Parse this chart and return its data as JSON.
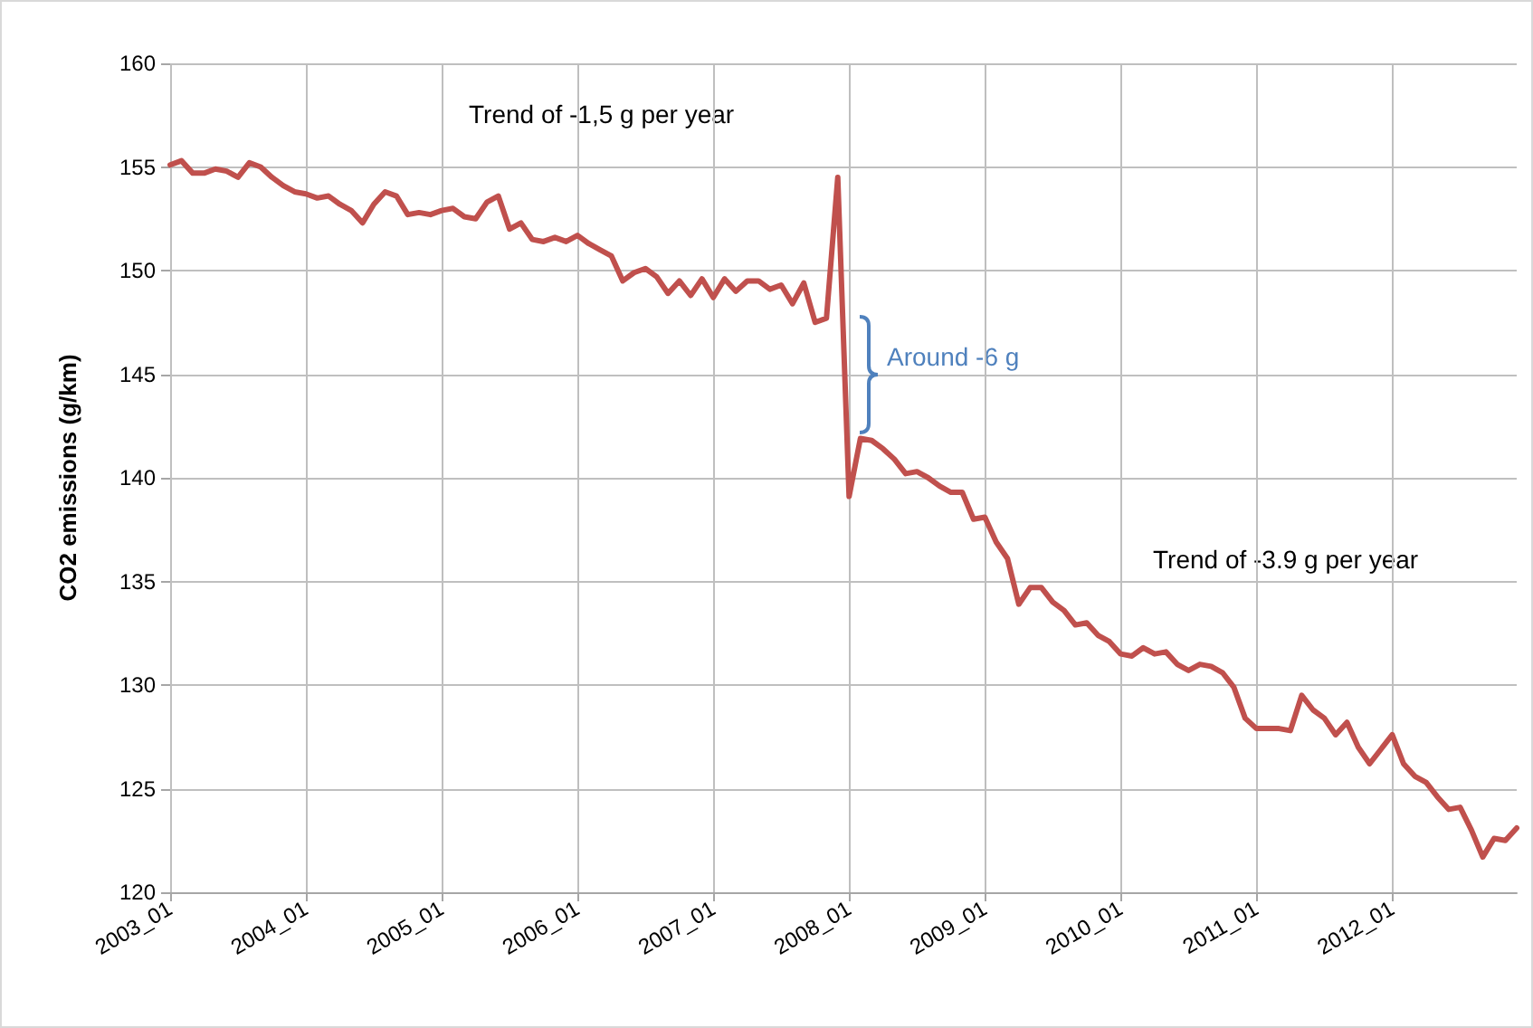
{
  "chart_data": {
    "type": "line",
    "ylabel": "CO2 emissions (g/km)",
    "categories": [
      "2003_01",
      null,
      null,
      null,
      null,
      null,
      null,
      null,
      null,
      null,
      null,
      null,
      "2004_01",
      null,
      null,
      null,
      null,
      null,
      null,
      null,
      null,
      null,
      null,
      null,
      "2005_01",
      null,
      null,
      null,
      null,
      null,
      null,
      null,
      null,
      null,
      null,
      null,
      "2006_01",
      null,
      null,
      null,
      null,
      null,
      null,
      null,
      null,
      null,
      null,
      null,
      "2007_01",
      null,
      null,
      null,
      null,
      null,
      null,
      null,
      null,
      null,
      null,
      null,
      "2008_01",
      null,
      null,
      null,
      null,
      null,
      null,
      null,
      null,
      null,
      null,
      null,
      "2009_01",
      null,
      null,
      null,
      null,
      null,
      null,
      null,
      null,
      null,
      null,
      null,
      "2010_01",
      null,
      null,
      null,
      null,
      null,
      null,
      null,
      null,
      null,
      null,
      null,
      "2011_01",
      null,
      null,
      null,
      null,
      null,
      null,
      null,
      null,
      null,
      null,
      null,
      "2012_01",
      null,
      null,
      null,
      null,
      null,
      null,
      null,
      null,
      null,
      null,
      null
    ],
    "series": [
      {
        "color": "#c0504d",
        "values": [
          155.1,
          155.3,
          154.7,
          154.7,
          154.9,
          154.8,
          154.5,
          155.2,
          155.0,
          154.5,
          154.1,
          153.8,
          153.7,
          153.5,
          153.6,
          153.2,
          152.9,
          152.3,
          153.2,
          153.8,
          153.6,
          152.7,
          152.8,
          152.7,
          152.9,
          153.0,
          152.6,
          152.5,
          153.3,
          153.6,
          152.0,
          152.3,
          151.5,
          151.4,
          151.6,
          151.4,
          151.7,
          151.3,
          151.0,
          150.7,
          149.5,
          149.9,
          150.1,
          149.7,
          148.9,
          149.5,
          148.8,
          149.6,
          148.7,
          149.6,
          149.0,
          149.5,
          149.5,
          149.1,
          149.3,
          148.4,
          149.4,
          147.5,
          147.7,
          154.5,
          139.1,
          141.9,
          141.8,
          141.4,
          140.9,
          140.2,
          140.3,
          140.0,
          139.6,
          139.3,
          139.3,
          138.0,
          138.1,
          136.9,
          136.1,
          133.9,
          134.7,
          134.7,
          134.0,
          133.6,
          132.9,
          133.0,
          132.4,
          132.1,
          131.5,
          131.4,
          131.8,
          131.5,
          131.6,
          131.0,
          130.7,
          131.0,
          130.9,
          130.6,
          129.9,
          128.4,
          127.9,
          127.9,
          127.9,
          127.8,
          129.5,
          128.8,
          128.4,
          127.6,
          128.2,
          127.0,
          126.2,
          126.9,
          127.6,
          126.2,
          125.6,
          125.3,
          124.6,
          124.0,
          124.1,
          123.0,
          121.7,
          122.6,
          122.5,
          123.1
        ]
      }
    ],
    "ylim": [
      120,
      160
    ],
    "yticks": [
      120,
      125,
      130,
      135,
      140,
      145,
      150,
      155,
      160
    ],
    "grid": true,
    "marker": "none",
    "line_style": "solid",
    "annotations": [
      "Trend of -1,5 g per year",
      "Around -6 g",
      "Trend of -3.9 g per year"
    ]
  }
}
